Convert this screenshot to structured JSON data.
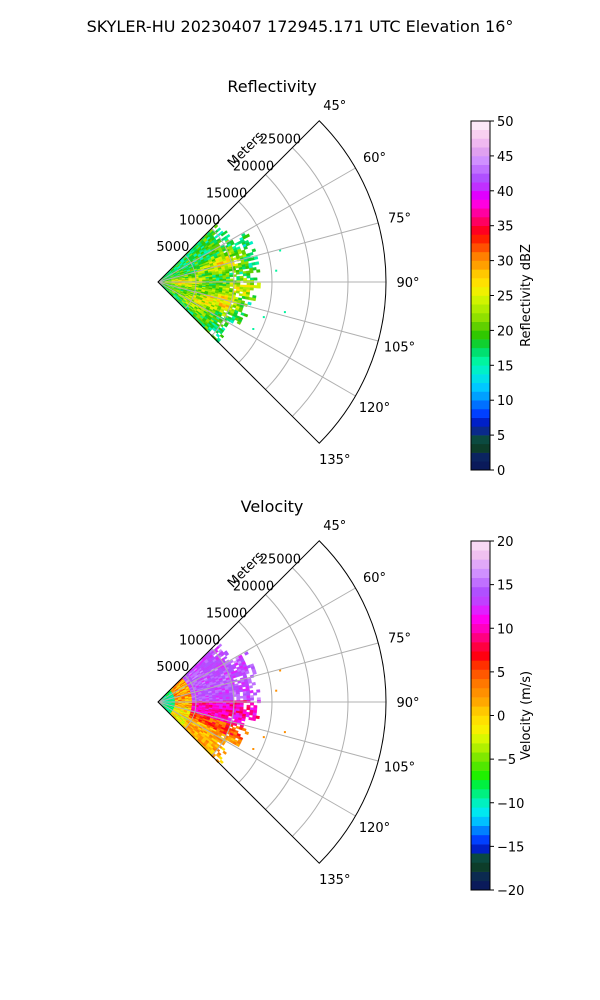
{
  "figure": {
    "suptitle": "SKYLER-HU  20230407  172945.171 UTC Elevation 16°"
  },
  "chart_data": [
    {
      "type": "heatmap",
      "subtype": "polar-sector",
      "title": "Reflectivity",
      "radial_label": "Meters",
      "radial_ticks": [
        5000,
        10000,
        15000,
        20000,
        25000
      ],
      "radial_max": 30000,
      "angle_ticks": [
        45,
        60,
        75,
        90,
        105,
        120,
        135
      ],
      "angle_tick_labels": [
        "45°",
        "60°",
        "75°",
        "90°",
        "105°",
        "120°",
        "135°"
      ],
      "angle_range": [
        45,
        135
      ],
      "colorbar": {
        "label": "Reflectivity dBZ",
        "range": [
          0,
          50
        ],
        "ticks": [
          0,
          5,
          10,
          15,
          20,
          25,
          30,
          35,
          40,
          45,
          50
        ],
        "colors": [
          "#0a1a5a",
          "#0b2460",
          "#0d3d2a",
          "#0b4a40",
          "#0a2a8a",
          "#0020c8",
          "#0040ff",
          "#0070ff",
          "#00a0ff",
          "#00c8ff",
          "#00e0e8",
          "#00f0c8",
          "#00f5a0",
          "#00e070",
          "#10d030",
          "#30c800",
          "#60d000",
          "#90e000",
          "#b0ec00",
          "#d0f400",
          "#f0f000",
          "#ffe000",
          "#ffc800",
          "#ffa000",
          "#ff8000",
          "#ff5000",
          "#ff2000",
          "#ff0020",
          "#ff0060",
          "#ff00a0",
          "#ff00e0",
          "#e000ff",
          "#c030ff",
          "#b050ff",
          "#c070ff",
          "#d090ff",
          "#e0a0f0",
          "#f0b8f0",
          "#f8d0f0",
          "#fce8f8"
        ]
      },
      "grid": true,
      "legend": "colorbar-right"
    },
    {
      "type": "heatmap",
      "subtype": "polar-sector",
      "title": "Velocity",
      "radial_label": "Meters",
      "radial_ticks": [
        5000,
        10000,
        15000,
        20000,
        25000
      ],
      "radial_max": 30000,
      "angle_ticks": [
        45,
        60,
        75,
        90,
        105,
        120,
        135
      ],
      "angle_tick_labels": [
        "45°",
        "60°",
        "75°",
        "90°",
        "105°",
        "120°",
        "135°"
      ],
      "angle_range": [
        45,
        135
      ],
      "colorbar": {
        "label": "Velocity (m/s)",
        "range": [
          -20,
          20
        ],
        "ticks": [
          -20,
          -15,
          -10,
          -5,
          0,
          5,
          10,
          15,
          20
        ],
        "tick_labels": [
          "−20",
          "−15",
          "−10",
          "−5",
          "0",
          "5",
          "10",
          "15",
          "20"
        ],
        "colors": [
          "#0a1a5a",
          "#0b2a50",
          "#0d3d2a",
          "#0b4a40",
          "#0020c8",
          "#0040ff",
          "#0080ff",
          "#00c0ff",
          "#00e8f0",
          "#00f0c0",
          "#00f080",
          "#00f040",
          "#20f000",
          "#50e800",
          "#80e800",
          "#b0f000",
          "#d8f800",
          "#f8f000",
          "#ffe000",
          "#ffc800",
          "#ffa800",
          "#ff9000",
          "#ff7800",
          "#ff5800",
          "#ff3000",
          "#ff0010",
          "#ff0040",
          "#ff0080",
          "#ff00c0",
          "#ff00f0",
          "#e020ff",
          "#c040ff",
          "#b050ff",
          "#c070ff",
          "#d090ff",
          "#e0a8f8",
          "#f0c0f0",
          "#f8d8f4"
        ]
      },
      "grid": true,
      "legend": "colorbar-right"
    }
  ]
}
